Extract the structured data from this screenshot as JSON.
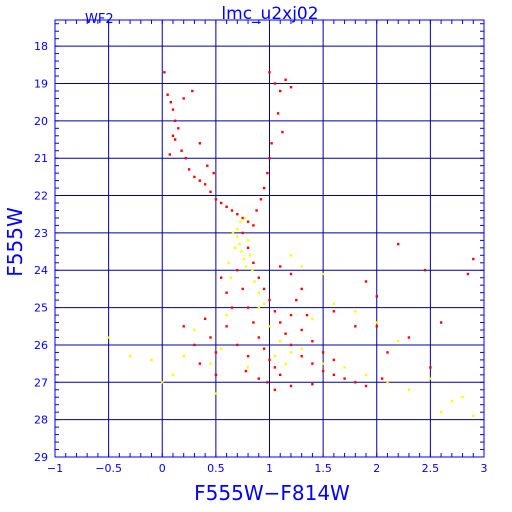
{
  "chart_data": {
    "type": "scatter",
    "title": "lmc_u2xj02",
    "chip_label": "WF2",
    "xlabel": "F555W−F814W",
    "ylabel": "F555W",
    "xlim": [
      -1,
      3
    ],
    "ylim": [
      29,
      17.3
    ],
    "y_inverted": true,
    "grid": true,
    "x_ticks": [
      -1,
      -0.5,
      0,
      0.5,
      1,
      1.5,
      2,
      2.5,
      3
    ],
    "x_tick_labels": [
      "−1",
      "−0.5",
      "0",
      "0.5",
      "1",
      "1.5",
      "2",
      "2.5",
      "3"
    ],
    "y_ticks": [
      18,
      19,
      20,
      21,
      22,
      23,
      24,
      25,
      26,
      27,
      28,
      29
    ],
    "y_tick_labels": [
      "18",
      "19",
      "20",
      "21",
      "22",
      "23",
      "24",
      "25",
      "26",
      "27",
      "28",
      "29"
    ],
    "colors": {
      "axis": "#0000ff",
      "grid": "#0000a0",
      "red_points": "#ff0000",
      "yellow_points": "#ffff00"
    },
    "series": [
      {
        "color": "red",
        "points": [
          [
            0.02,
            18.7
          ],
          [
            0.05,
            19.3
          ],
          [
            0.08,
            19.5
          ],
          [
            0.1,
            19.7
          ],
          [
            0.12,
            20.0
          ],
          [
            0.15,
            20.2
          ],
          [
            0.12,
            20.5
          ],
          [
            0.18,
            20.8
          ],
          [
            0.22,
            21.0
          ],
          [
            0.25,
            21.3
          ],
          [
            0.3,
            21.5
          ],
          [
            0.35,
            21.6
          ],
          [
            0.4,
            21.7
          ],
          [
            0.45,
            21.9
          ],
          [
            0.5,
            22.1
          ],
          [
            0.55,
            22.2
          ],
          [
            0.6,
            22.3
          ],
          [
            0.65,
            22.4
          ],
          [
            0.7,
            22.5
          ],
          [
            0.75,
            22.6
          ],
          [
            0.8,
            22.7
          ],
          [
            0.85,
            22.8
          ],
          [
            0.1,
            20.4
          ],
          [
            0.07,
            20.9
          ],
          [
            0.28,
            19.2
          ],
          [
            0.2,
            19.4
          ],
          [
            0.35,
            20.6
          ],
          [
            0.42,
            21.2
          ],
          [
            0.48,
            21.4
          ],
          [
            1.0,
            18.7
          ],
          [
            1.05,
            19.0
          ],
          [
            1.1,
            19.2
          ],
          [
            1.08,
            19.8
          ],
          [
            1.12,
            20.3
          ],
          [
            1.02,
            20.6
          ],
          [
            1.0,
            21.0
          ],
          [
            0.98,
            21.4
          ],
          [
            0.95,
            21.8
          ],
          [
            0.92,
            22.1
          ],
          [
            0.88,
            22.4
          ],
          [
            1.15,
            18.9
          ],
          [
            1.2,
            19.1
          ],
          [
            0.75,
            23.0
          ],
          [
            0.8,
            23.4
          ],
          [
            0.85,
            23.8
          ],
          [
            0.9,
            24.2
          ],
          [
            0.95,
            24.5
          ],
          [
            1.0,
            24.8
          ],
          [
            1.05,
            25.1
          ],
          [
            1.1,
            25.4
          ],
          [
            1.15,
            25.7
          ],
          [
            1.2,
            26.0
          ],
          [
            1.3,
            26.3
          ],
          [
            1.4,
            26.5
          ],
          [
            1.5,
            26.7
          ],
          [
            1.6,
            26.8
          ],
          [
            1.7,
            26.9
          ],
          [
            1.8,
            27.0
          ],
          [
            0.7,
            24.0
          ],
          [
            0.75,
            24.5
          ],
          [
            0.8,
            25.0
          ],
          [
            0.85,
            25.4
          ],
          [
            0.9,
            25.8
          ],
          [
            0.95,
            26.1
          ],
          [
            1.0,
            26.4
          ],
          [
            1.05,
            26.6
          ],
          [
            1.1,
            26.8
          ],
          [
            0.65,
            25.0
          ],
          [
            0.6,
            25.5
          ],
          [
            0.7,
            26.0
          ],
          [
            0.8,
            26.3
          ],
          [
            1.2,
            25.2
          ],
          [
            1.3,
            25.6
          ],
          [
            1.4,
            25.9
          ],
          [
            1.5,
            26.2
          ],
          [
            1.6,
            26.4
          ],
          [
            1.25,
            24.8
          ],
          [
            1.35,
            25.2
          ],
          [
            0.55,
            24.2
          ],
          [
            0.6,
            24.6
          ],
          [
            0.4,
            25.3
          ],
          [
            0.45,
            25.8
          ],
          [
            0.5,
            26.2
          ],
          [
            0.3,
            26.0
          ],
          [
            0.2,
            25.5
          ],
          [
            2.1,
            26.2
          ],
          [
            2.3,
            25.8
          ],
          [
            2.5,
            26.6
          ],
          [
            1.9,
            24.3
          ],
          [
            2.0,
            24.7
          ],
          [
            2.2,
            23.3
          ],
          [
            1.1,
            23.9
          ],
          [
            1.3,
            24.5
          ],
          [
            1.2,
            24.1
          ],
          [
            1.6,
            25.1
          ],
          [
            1.8,
            25.5
          ],
          [
            2.05,
            26.9
          ],
          [
            1.9,
            27.1
          ],
          [
            0.98,
            27.0
          ],
          [
            1.05,
            27.2
          ],
          [
            1.2,
            27.1
          ],
          [
            1.4,
            27.05
          ],
          [
            0.5,
            26.8
          ],
          [
            0.35,
            26.5
          ],
          [
            2.6,
            25.4
          ],
          [
            2.85,
            24.1
          ],
          [
            2.9,
            23.7
          ],
          [
            2.45,
            24.0
          ],
          [
            2.0,
            25.5
          ],
          [
            0.9,
            26.9
          ],
          [
            0.78,
            26.7
          ]
        ]
      },
      {
        "color": "yellow",
        "points": [
          [
            0.7,
            23.1
          ],
          [
            0.72,
            23.3
          ],
          [
            0.74,
            23.5
          ],
          [
            0.76,
            23.7
          ],
          [
            0.78,
            23.9
          ],
          [
            0.68,
            23.4
          ],
          [
            0.66,
            23.0
          ],
          [
            0.8,
            23.2
          ],
          [
            0.82,
            23.6
          ],
          [
            0.7,
            22.9
          ],
          [
            0.73,
            22.7
          ],
          [
            0.77,
            22.6
          ],
          [
            0.84,
            24.0
          ],
          [
            0.86,
            24.3
          ],
          [
            0.62,
            23.8
          ],
          [
            0.64,
            24.2
          ],
          [
            0.9,
            25.0
          ],
          [
            1.0,
            25.5
          ],
          [
            1.1,
            25.9
          ],
          [
            1.2,
            26.2
          ],
          [
            1.3,
            26.1
          ],
          [
            1.5,
            26.5
          ],
          [
            1.7,
            26.6
          ],
          [
            1.9,
            26.8
          ],
          [
            2.1,
            27.0
          ],
          [
            2.3,
            27.2
          ],
          [
            2.5,
            26.9
          ],
          [
            2.7,
            27.5
          ],
          [
            2.9,
            27.9
          ],
          [
            2.8,
            27.4
          ],
          [
            2.6,
            27.8
          ],
          [
            0.3,
            25.6
          ],
          [
            0.2,
            26.3
          ],
          [
            0.1,
            26.8
          ],
          [
            -0.1,
            26.4
          ],
          [
            -0.3,
            26.3
          ],
          [
            -0.5,
            25.8
          ],
          [
            0.0,
            27.0
          ],
          [
            0.5,
            27.3
          ],
          [
            0.8,
            26.6
          ],
          [
            1.4,
            25.3
          ],
          [
            1.6,
            24.9
          ],
          [
            1.8,
            25.1
          ],
          [
            2.0,
            25.4
          ],
          [
            2.2,
            25.9
          ],
          [
            1.2,
            23.6
          ],
          [
            1.3,
            23.9
          ],
          [
            1.5,
            24.1
          ],
          [
            0.9,
            24.6
          ],
          [
            0.95,
            24.9
          ],
          [
            1.05,
            26.3
          ],
          [
            1.15,
            26.5
          ],
          [
            0.6,
            25.2
          ],
          [
            0.55,
            26.1
          ],
          [
            0.45,
            26.5
          ]
        ]
      }
    ]
  }
}
